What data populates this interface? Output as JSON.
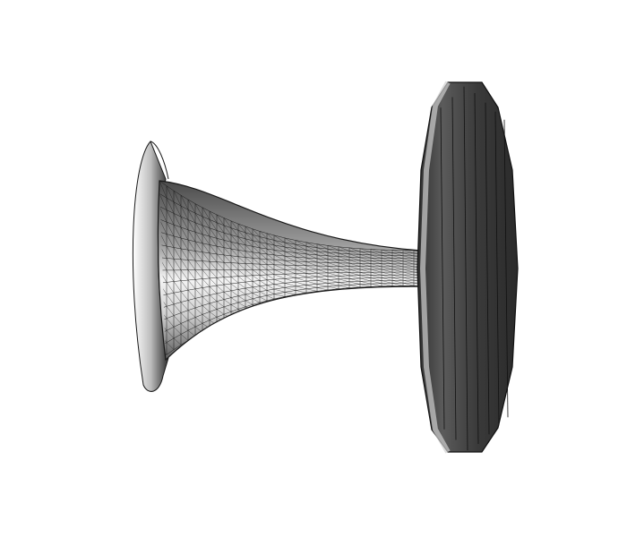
{
  "scene": {
    "subject": "mesh-render",
    "colors": {
      "background": "#ffffff",
      "wire": "#1a1a1a",
      "shade_dark": "#3a3a3a",
      "shade_mid": "#8a8a8a",
      "shade_light": "#f2f2f2"
    }
  }
}
